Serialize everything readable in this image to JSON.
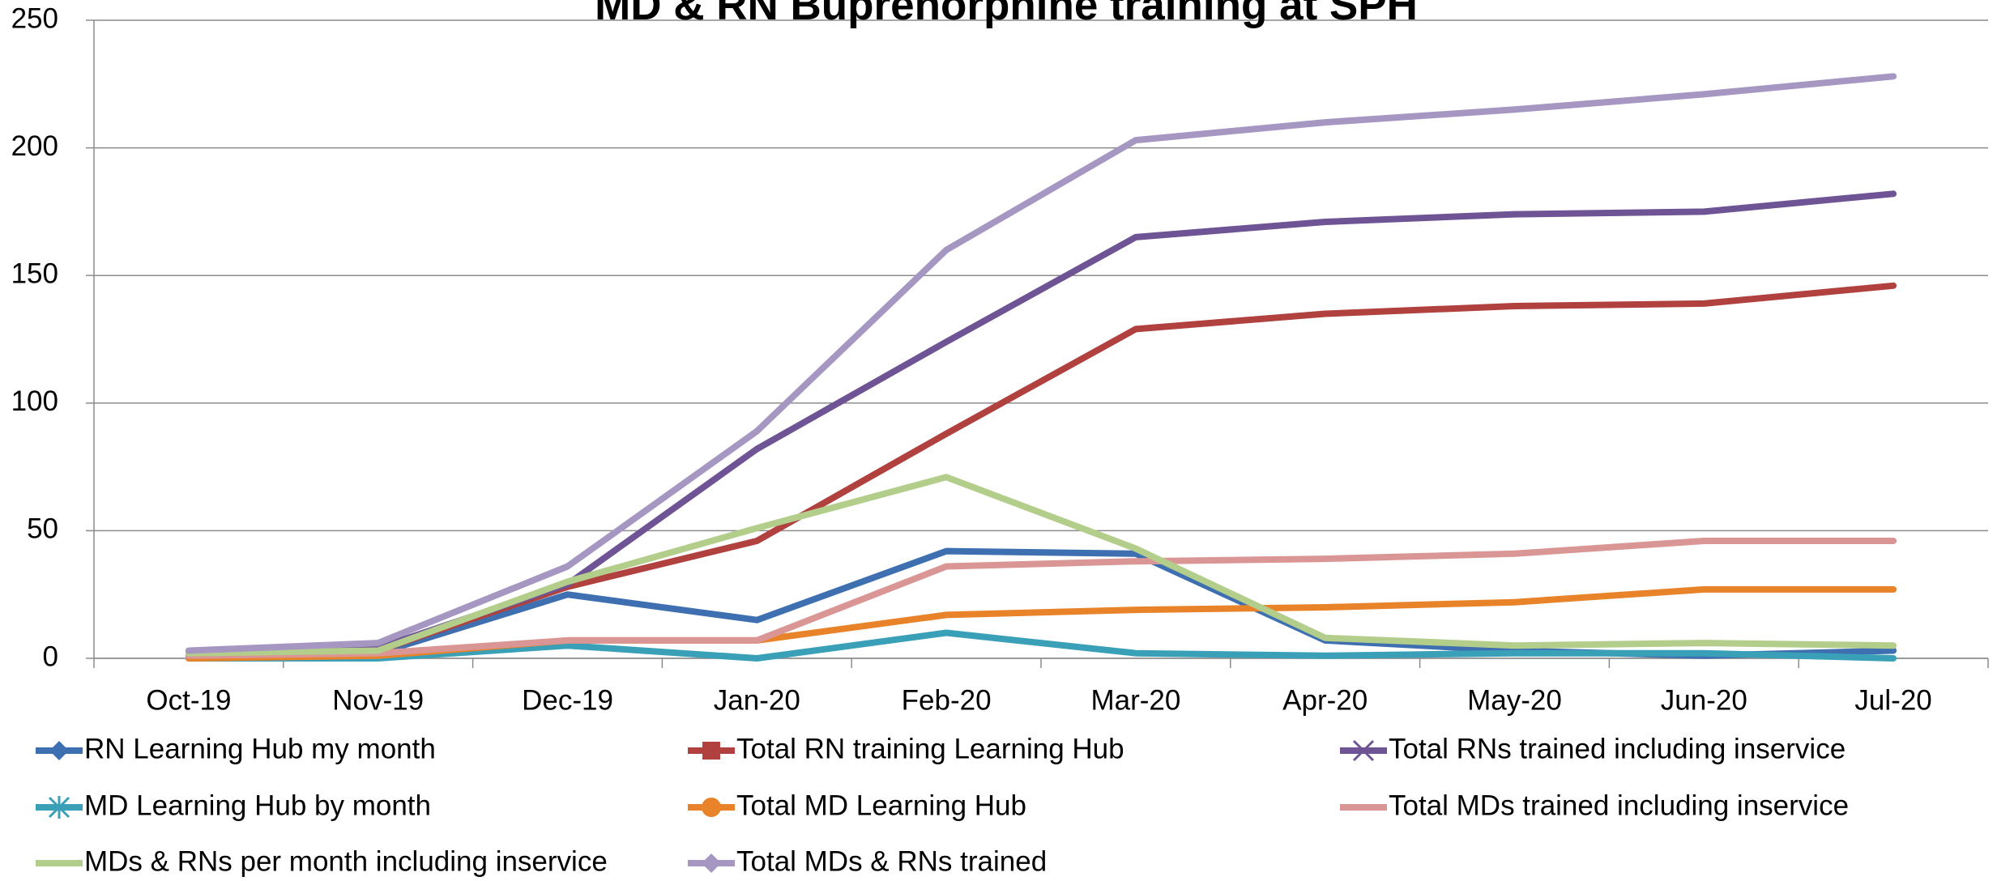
{
  "chart_data": {
    "type": "line",
    "title": "MD & RN Buprenorphine training at SPH",
    "categories": [
      "Oct-19",
      "Nov-19",
      "Dec-19",
      "Jan-20",
      "Feb-20",
      "Mar-20",
      "Apr-20",
      "May-20",
      "Jun-20",
      "Jul-20"
    ],
    "series": [
      {
        "name": "RN Learning Hub my month",
        "color": "#3e6fb0",
        "values": [
          2,
          2,
          25,
          15,
          42,
          41,
          7,
          3,
          1,
          3
        ]
      },
      {
        "name": "Total RN training Learning Hub",
        "color": "#b0413e",
        "values": [
          1,
          3,
          28,
          46,
          88,
          129,
          135,
          138,
          139,
          146
        ]
      },
      {
        "name": "Total RNs trained including inservice",
        "color": "#6f5495",
        "values": [
          2,
          4,
          29,
          82,
          124,
          165,
          171,
          174,
          175,
          182
        ]
      },
      {
        "name": "MD Learning Hub by month",
        "color": "#3aa0b8",
        "values": [
          0,
          0,
          5,
          0,
          10,
          2,
          1,
          2,
          2,
          0
        ]
      },
      {
        "name": "Total MD Learning Hub",
        "color": "#e8832a",
        "values": [
          0,
          1,
          7,
          7,
          17,
          19,
          20,
          22,
          27,
          27
        ]
      },
      {
        "name": "Total MDs trained including inservice",
        "color": "#d99694",
        "values": [
          1,
          2,
          7,
          7,
          36,
          38,
          39,
          41,
          46,
          46
        ]
      },
      {
        "name": "MDs & RNs per month including inservice",
        "color": "#b3cd8b",
        "values": [
          2,
          3,
          30,
          51,
          71,
          43,
          8,
          5,
          6,
          5
        ]
      },
      {
        "name": "Total MDs & RNs trained",
        "color": "#a596c2",
        "values": [
          3,
          6,
          36,
          89,
          160,
          203,
          210,
          215,
          221,
          228
        ]
      }
    ],
    "ylim": [
      0,
      250
    ],
    "yticks": [
      0,
      50,
      100,
      150,
      200,
      250
    ],
    "grid": true
  }
}
